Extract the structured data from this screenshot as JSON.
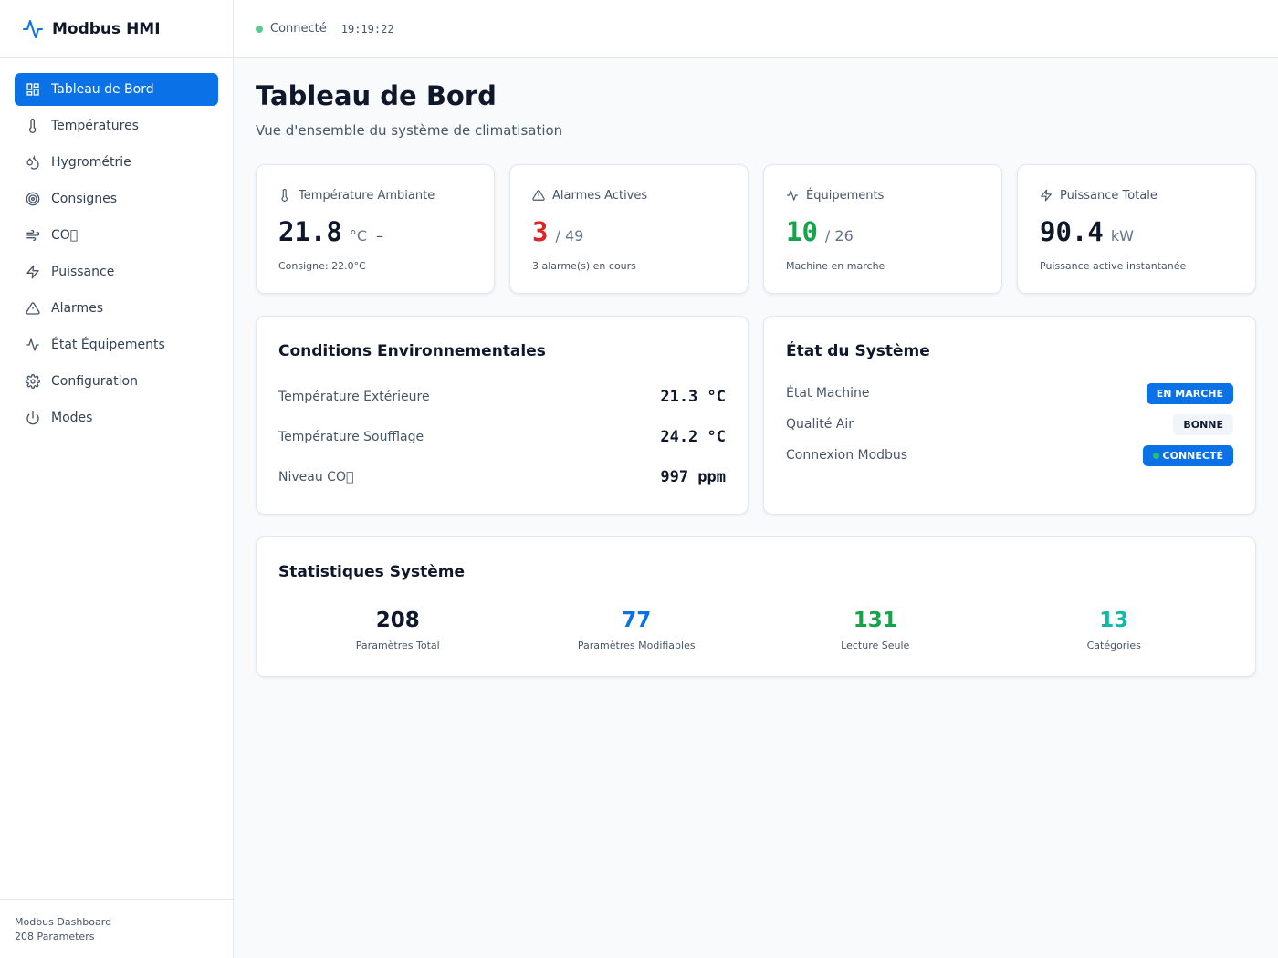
{
  "app": {
    "title": "Modbus HMI"
  },
  "sidebar": {
    "items": [
      {
        "label": "Tableau de Bord",
        "icon": "dashboard-icon",
        "active": true
      },
      {
        "label": "Températures",
        "icon": "thermometer-icon"
      },
      {
        "label": "Hygrométrie",
        "icon": "droplets-icon"
      },
      {
        "label": "Consignes",
        "icon": "target-icon"
      },
      {
        "label": "CO\u0000",
        "icon": "wind-icon"
      },
      {
        "label": "Puissance",
        "icon": "zap-icon"
      },
      {
        "label": "Alarmes",
        "icon": "alert-triangle-icon"
      },
      {
        "label": "État Équipements",
        "icon": "activity-icon"
      },
      {
        "label": "Configuration",
        "icon": "gear-icon"
      },
      {
        "label": "Modes",
        "icon": "power-icon"
      }
    ],
    "footer": {
      "line1": "Modbus Dashboard",
      "line2": "208 Parameters"
    }
  },
  "header": {
    "status": "Connecté",
    "time": "19:19:22",
    "status_color": "#5cc98e"
  },
  "page": {
    "title": "Tableau de Bord",
    "subtitle": "Vue d'ensemble du système de climatisation"
  },
  "stat_cards": {
    "temperature": {
      "label": "Température Ambiante",
      "value": "21.8",
      "unit": "°C",
      "trend": "–",
      "footer": "Consigne: 22.0°C"
    },
    "alarms": {
      "label": "Alarmes Actives",
      "value": "3",
      "total": "/ 49",
      "footer": "3 alarme(s) en cours",
      "color": "#dc2626"
    },
    "equipment": {
      "label": "Équipements",
      "value": "10",
      "total": "/ 26",
      "footer": "Machine en marche",
      "color": "#16a34a"
    },
    "power": {
      "label": "Puissance Totale",
      "value": "90.4",
      "unit": "kW",
      "footer": "Puissance active instantanée"
    }
  },
  "env": {
    "title": "Conditions Environnementales",
    "rows": [
      {
        "label": "Température Extérieure",
        "value": "21.3 °C"
      },
      {
        "label": "Température Soufflage",
        "value": "24.2 °C"
      },
      {
        "label": "Niveau CO\u0000",
        "value": "997 ppm"
      }
    ]
  },
  "system": {
    "title": "État du Système",
    "rows": [
      {
        "label": "État Machine",
        "badge": "EN MARCHE"
      },
      {
        "label": "Qualité Air",
        "badge": "BONNE"
      },
      {
        "label": "Connexion Modbus",
        "badge": "CONNECTÉ"
      }
    ]
  },
  "stats": {
    "title": "Statistiques Système",
    "items": [
      {
        "value": "208",
        "label": "Paramètres Total",
        "color": "#0f172a"
      },
      {
        "value": "77",
        "label": "Paramètres Modifiables",
        "color": "#0a72e6"
      },
      {
        "value": "131",
        "label": "Lecture Seule",
        "color": "#16a34a"
      },
      {
        "value": "13",
        "label": "Catégories",
        "color": "#14b8a6"
      }
    ]
  }
}
